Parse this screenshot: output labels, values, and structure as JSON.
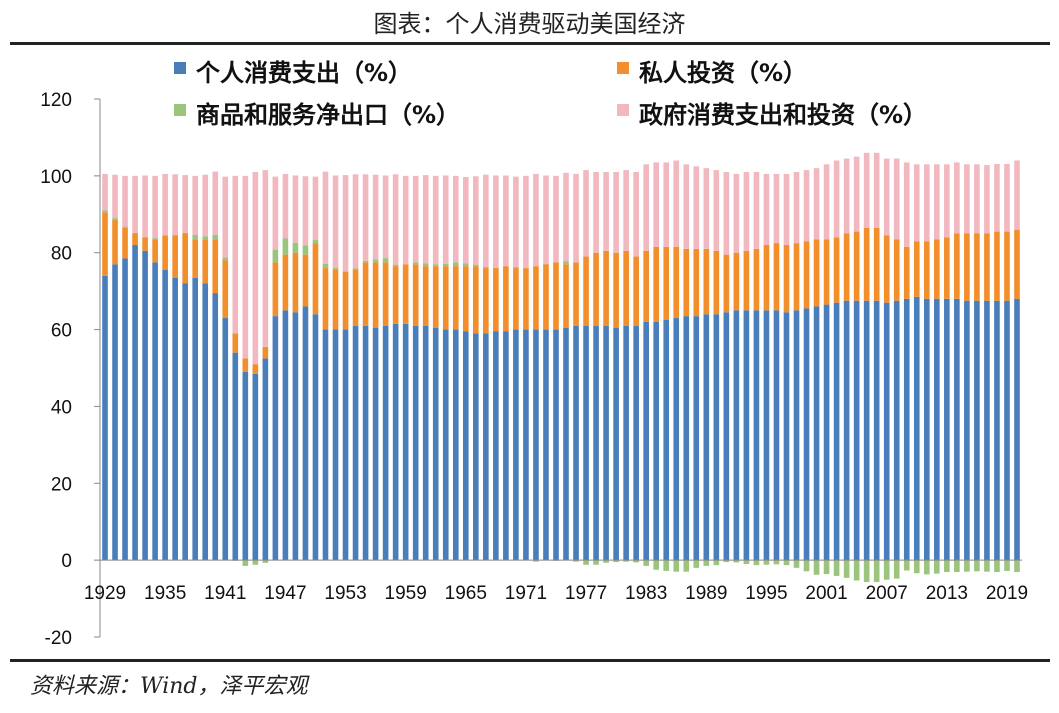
{
  "title": "图表：个人消费驱动美国经济",
  "source": "资料来源：Wind，泽平宏观",
  "chart_data": {
    "type": "bar",
    "stacked": true,
    "title": "图表：个人消费驱动美国经济",
    "xlabel": "",
    "ylabel": "",
    "ylim": [
      -20,
      120
    ],
    "yticks": [
      -20,
      0,
      20,
      40,
      60,
      80,
      100,
      120
    ],
    "yticks_label": [
      "-20",
      "0",
      "20",
      "40",
      "60",
      "80",
      "100",
      "120"
    ],
    "xticks_label": [
      "1929",
      "1935",
      "1941",
      "1947",
      "1953",
      "1959",
      "1965",
      "1971",
      "1977",
      "1983",
      "1989",
      "1995",
      "2001",
      "2007",
      "2013",
      "2019"
    ],
    "legend_position": "top",
    "categories": [
      "1929",
      "1930",
      "1931",
      "1932",
      "1933",
      "1934",
      "1935",
      "1936",
      "1937",
      "1938",
      "1939",
      "1940",
      "1941",
      "1942",
      "1943",
      "1944",
      "1945",
      "1946",
      "1947",
      "1948",
      "1949",
      "1950",
      "1951",
      "1952",
      "1953",
      "1954",
      "1955",
      "1956",
      "1957",
      "1958",
      "1959",
      "1960",
      "1961",
      "1962",
      "1963",
      "1964",
      "1965",
      "1966",
      "1967",
      "1968",
      "1969",
      "1970",
      "1971",
      "1972",
      "1973",
      "1974",
      "1975",
      "1976",
      "1977",
      "1978",
      "1979",
      "1980",
      "1981",
      "1982",
      "1983",
      "1984",
      "1985",
      "1986",
      "1987",
      "1988",
      "1989",
      "1990",
      "1991",
      "1992",
      "1993",
      "1994",
      "1995",
      "1996",
      "1997",
      "1998",
      "1999",
      "2000",
      "2001",
      "2002",
      "2003",
      "2004",
      "2005",
      "2006",
      "2007",
      "2008",
      "2009",
      "2010",
      "2011",
      "2012",
      "2013",
      "2014",
      "2015",
      "2016",
      "2017",
      "2018",
      "2019",
      "2020"
    ],
    "series": [
      {
        "name": "个人消费支出（%）",
        "color": "#4a7ebb",
        "values": [
          74,
          77,
          78.5,
          82,
          80.5,
          77.5,
          75.5,
          73.5,
          72,
          73.5,
          72,
          69.5,
          63,
          54,
          49,
          48.5,
          52.5,
          63.5,
          65,
          64.5,
          66,
          64,
          60,
          60,
          60,
          61,
          61,
          60.5,
          61,
          61.5,
          61.5,
          61,
          61,
          60.5,
          60,
          60,
          59.5,
          59,
          59,
          59.5,
          59.5,
          60,
          60,
          60,
          60,
          60,
          60.5,
          61,
          61,
          61,
          61,
          60.5,
          61,
          61,
          62,
          62,
          62.5,
          63,
          63.5,
          63.5,
          64,
          64,
          64.5,
          65,
          65,
          65,
          65,
          65,
          64.5,
          65,
          65.5,
          66,
          66.5,
          67,
          67.5,
          67.5,
          67.5,
          67.5,
          67,
          67.5,
          68,
          68.5,
          68,
          68,
          68,
          68,
          67.5,
          67.5,
          67.5,
          67.5,
          67.5,
          68
        ]
      },
      {
        "name": "私人投资（%）",
        "color": "#f28e2b",
        "values": [
          16.5,
          11.5,
          8,
          3,
          3.5,
          6,
          9,
          11,
          13,
          10,
          11.5,
          14,
          15,
          5,
          3.5,
          2.5,
          3,
          14,
          14.5,
          15.5,
          13.5,
          18.5,
          16,
          15.5,
          15,
          14.5,
          16.5,
          17,
          16.5,
          15,
          15.5,
          16,
          15.5,
          16,
          16.5,
          16.5,
          17,
          17.5,
          17,
          16.5,
          17,
          16,
          16,
          16.5,
          17,
          17.5,
          16.5,
          16.5,
          18,
          19,
          19.5,
          19.5,
          19.5,
          18,
          18.5,
          19.5,
          19,
          18.5,
          17.5,
          17.5,
          17,
          16.5,
          15,
          15,
          15.5,
          16,
          17,
          17.5,
          17.5,
          17.5,
          17.5,
          17.5,
          17,
          17,
          17.5,
          18,
          19,
          19,
          17.5,
          16,
          13.5,
          14.5,
          15,
          15.5,
          16,
          17,
          17.5,
          17.5,
          17.5,
          18,
          18,
          18
        ]
      },
      {
        "name": "商品和服务净出口（%）",
        "color": "#9bc47d",
        "values": [
          0.5,
          0.5,
          0.3,
          0.2,
          0.1,
          0.3,
          0,
          0.1,
          0.2,
          1.1,
          0.8,
          1.1,
          0.8,
          -0.2,
          -1.5,
          -1.2,
          -0.7,
          3.3,
          4.2,
          2.6,
          2.4,
          0.8,
          1.1,
          0.6,
          0.2,
          0.4,
          0.4,
          0.8,
          1.1,
          0.4,
          -0.1,
          0.5,
          0.7,
          0.5,
          0.6,
          1,
          0.7,
          0.4,
          0.3,
          0.1,
          0.1,
          0.3,
          0,
          -0.4,
          0.1,
          -0.2,
          0.8,
          -0.4,
          -1.2,
          -1.2,
          -0.7,
          -0.5,
          -0.4,
          -0.6,
          -1.5,
          -2.5,
          -2.8,
          -3,
          -3,
          -2,
          -1.5,
          -1.3,
          -0.5,
          -0.6,
          -1,
          -1.3,
          -1.2,
          -1.1,
          -1.3,
          -2,
          -2.9,
          -3.8,
          -3.6,
          -4.1,
          -4.6,
          -5.3,
          -5.7,
          -5.7,
          -5.1,
          -4.8,
          -2.7,
          -3.4,
          -3.7,
          -3.5,
          -3.1,
          -3.1,
          -3,
          -2.9,
          -3,
          -3.1,
          -2.8,
          -3.1
        ]
      },
      {
        "name": "政府消费支出和投资（%）",
        "color": "#f2b8c0",
        "values": [
          9.5,
          11.3,
          13.2,
          14.8,
          16,
          16.2,
          16,
          15.8,
          15,
          15.4,
          16,
          16.5,
          21,
          41,
          47.5,
          50,
          46,
          19,
          16.8,
          17.5,
          18,
          16.5,
          24,
          24,
          25,
          24.5,
          22.5,
          22,
          21.5,
          23.5,
          23,
          22.5,
          23,
          23,
          23,
          22.5,
          22.5,
          23,
          24,
          24,
          23.5,
          23.5,
          24,
          24,
          23,
          22.5,
          23,
          23,
          22.5,
          21,
          20.5,
          21,
          21,
          22,
          22.5,
          22,
          22,
          22.5,
          22,
          21.5,
          21,
          21,
          21.5,
          20.5,
          20.5,
          20,
          18.5,
          18,
          18.5,
          18.5,
          18.5,
          18.5,
          19.5,
          20,
          19.5,
          19.5,
          19.5,
          19.5,
          20,
          21,
          22,
          20,
          20,
          19.5,
          19,
          18.5,
          18,
          18,
          17.8,
          17.6,
          17.6,
          18
        ]
      }
    ]
  }
}
